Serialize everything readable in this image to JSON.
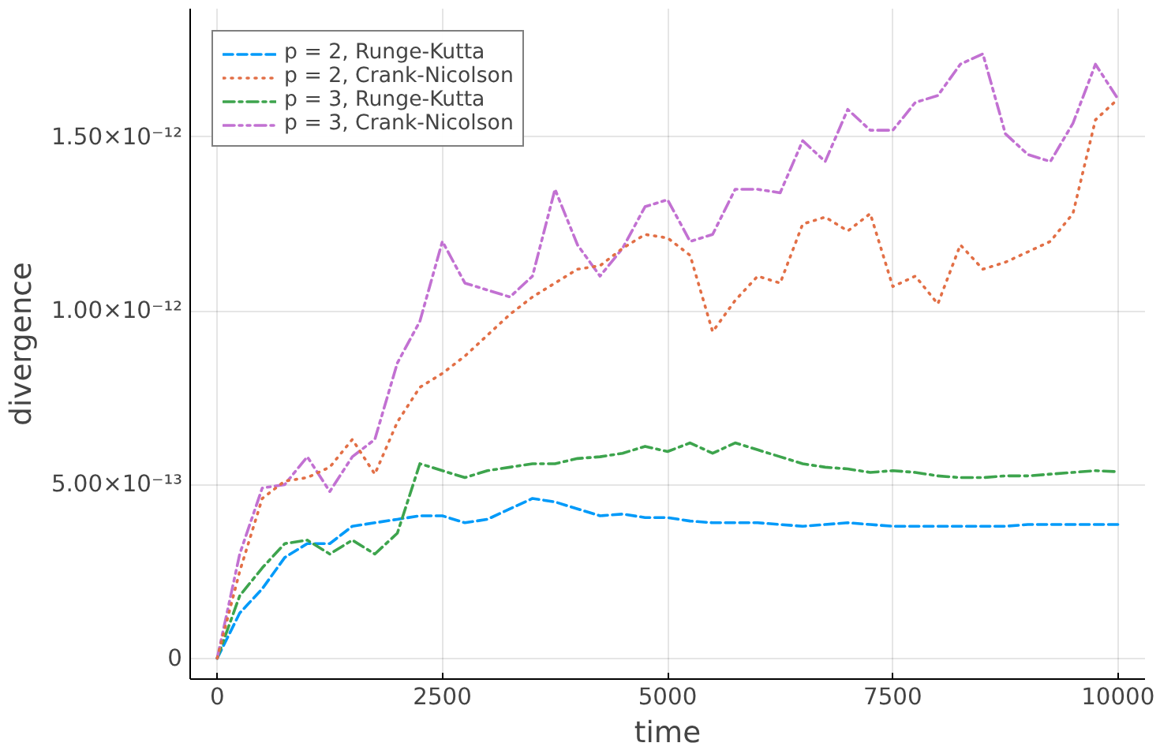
{
  "chart_data": {
    "type": "line",
    "xlabel": "time",
    "ylabel": "divergence",
    "x": [
      0,
      250,
      500,
      750,
      1000,
      1250,
      1500,
      1750,
      2000,
      2250,
      2500,
      2750,
      3000,
      3250,
      3500,
      3750,
      4000,
      4250,
      4500,
      4750,
      5000,
      5250,
      5500,
      5750,
      6000,
      6250,
      6500,
      6750,
      7000,
      7250,
      7500,
      7750,
      8000,
      8250,
      8500,
      8750,
      9000,
      9250,
      9500,
      9750,
      10000
    ],
    "series": [
      {
        "name": "p = 2, Runge-Kutta",
        "color": "#009af9",
        "line_style": "dashed",
        "values": [
          0,
          1.3e-13,
          2e-13,
          2.9e-13,
          3.3e-13,
          3.3e-13,
          3.8e-13,
          3.9e-13,
          4e-13,
          4.1e-13,
          4.1e-13,
          3.9e-13,
          4e-13,
          4.3e-13,
          4.6e-13,
          4.5e-13,
          4.3e-13,
          4.1e-13,
          4.15e-13,
          4.05e-13,
          4.05e-13,
          3.95e-13,
          3.9e-13,
          3.9e-13,
          3.9e-13,
          3.85e-13,
          3.8e-13,
          3.85e-13,
          3.9e-13,
          3.85e-13,
          3.8e-13,
          3.8e-13,
          3.8e-13,
          3.8e-13,
          3.8e-13,
          3.8e-13,
          3.85e-13,
          3.85e-13,
          3.85e-13,
          3.85e-13,
          3.85e-13
        ]
      },
      {
        "name": "p = 2, Crank-Nicolson",
        "color": "#e26f46",
        "line_style": "dotted",
        "values": [
          0,
          2.5e-13,
          4.6e-13,
          5.1e-13,
          5.2e-13,
          5.5e-13,
          6.3e-13,
          5.3e-13,
          6.8e-13,
          7.8e-13,
          8.2e-13,
          8.7e-13,
          9.3e-13,
          9.9e-13,
          1.04e-12,
          1.08e-12,
          1.12e-12,
          1.13e-12,
          1.18e-12,
          1.22e-12,
          1.21e-12,
          1.16e-12,
          9.4e-13,
          1.03e-12,
          1.1e-12,
          1.08e-12,
          1.25e-12,
          1.27e-12,
          1.23e-12,
          1.28e-12,
          1.07e-12,
          1.1e-12,
          1.02e-12,
          1.19e-12,
          1.12e-12,
          1.14e-12,
          1.17e-12,
          1.2e-12,
          1.28e-12,
          1.55e-12,
          1.61e-12
        ]
      },
      {
        "name": "p = 3, Runge-Kutta",
        "color": "#3da44d",
        "line_style": "dashdot",
        "values": [
          0,
          1.8e-13,
          2.6e-13,
          3.3e-13,
          3.4e-13,
          3e-13,
          3.4e-13,
          3e-13,
          3.6e-13,
          5.6e-13,
          5.4e-13,
          5.2e-13,
          5.4e-13,
          5.5e-13,
          5.6e-13,
          5.6e-13,
          5.75e-13,
          5.8e-13,
          5.9e-13,
          6.1e-13,
          5.95e-13,
          6.2e-13,
          5.9e-13,
          6.2e-13,
          6e-13,
          5.8e-13,
          5.6e-13,
          5.5e-13,
          5.45e-13,
          5.35e-13,
          5.4e-13,
          5.35e-13,
          5.25e-13,
          5.2e-13,
          5.2e-13,
          5.25e-13,
          5.25e-13,
          5.3e-13,
          5.35e-13,
          5.4e-13,
          5.37e-13
        ]
      },
      {
        "name": "p = 3, Crank-Nicolson",
        "color": "#c271d2",
        "line_style": "dashdotdot",
        "values": [
          0,
          3e-13,
          4.9e-13,
          5e-13,
          5.8e-13,
          4.8e-13,
          5.8e-13,
          6.3e-13,
          8.5e-13,
          9.7e-13,
          1.2e-12,
          1.08e-12,
          1.06e-12,
          1.04e-12,
          1.1e-12,
          1.35e-12,
          1.19e-12,
          1.1e-12,
          1.18e-12,
          1.3e-12,
          1.32e-12,
          1.2e-12,
          1.22e-12,
          1.35e-12,
          1.35e-12,
          1.34e-12,
          1.49e-12,
          1.43e-12,
          1.58e-12,
          1.52e-12,
          1.52e-12,
          1.6e-12,
          1.62e-12,
          1.71e-12,
          1.74e-12,
          1.51e-12,
          1.45e-12,
          1.43e-12,
          1.54e-12,
          1.71e-12,
          1.61e-12
        ]
      }
    ],
    "xlim": [
      -300,
      10300
    ],
    "ylim": [
      -6e-14,
      1.87e-12
    ],
    "xticks": [
      0,
      2500,
      5000,
      7500,
      10000
    ],
    "yticks": [
      0,
      {
        "value": 5e-13,
        "label": "5.00×10⁻¹³"
      },
      {
        "value": 1e-12,
        "label": "1.00×10⁻¹²"
      },
      {
        "value": 1.5e-12,
        "label": "1.50×10⁻¹²"
      }
    ],
    "grid": true,
    "legend": "top left"
  }
}
